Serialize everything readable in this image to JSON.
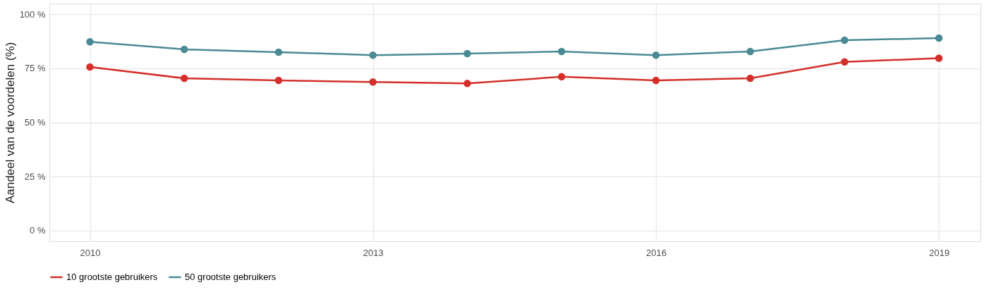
{
  "chart_data": {
    "type": "line",
    "ylabel": "Aandeel van de voordelen (%)",
    "x": [
      2010,
      2011,
      2012,
      2013,
      2014,
      2015,
      2016,
      2017,
      2018,
      2019
    ],
    "series": [
      {
        "name": "10 grootste gebruikers",
        "color": "#d42f2a",
        "values": [
          75.6,
          70.4,
          69.4,
          68.7,
          68.0,
          71.1,
          69.4,
          70.4,
          78.0,
          79.7
        ]
      },
      {
        "name": "50 grootste gebruikers",
        "color": "#4a8a94",
        "values": [
          87.3,
          83.8,
          82.5,
          81.1,
          81.8,
          82.8,
          81.1,
          82.8,
          88.0,
          89.0
        ]
      }
    ],
    "xlim": [
      2009.57,
      2019.44
    ],
    "xticks": [
      2010,
      2013,
      2016,
      2019
    ],
    "ylim": [
      -5,
      105
    ],
    "yticks": [
      {
        "value": 0,
        "label": "0 %"
      },
      {
        "value": 25,
        "label": "25 %"
      },
      {
        "value": 50,
        "label": "50 %"
      },
      {
        "value": 75,
        "label": "75 %"
      },
      {
        "value": 100,
        "label": "100 %"
      }
    ],
    "grid": true,
    "legend": "bottom",
    "marker": "circle",
    "line_style": "solid"
  }
}
